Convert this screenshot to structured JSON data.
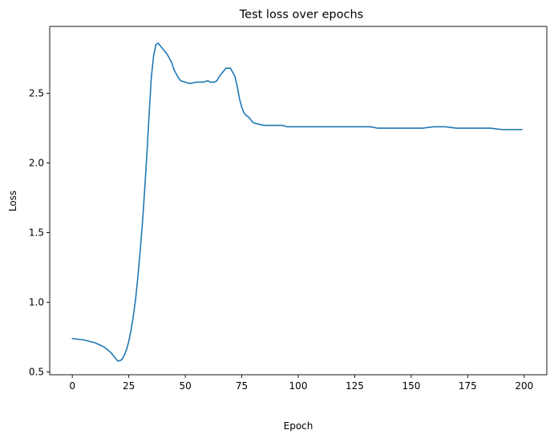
{
  "chart_data": {
    "type": "line",
    "title": "Test loss over epochs",
    "xlabel": "Epoch",
    "ylabel": "Loss",
    "xlim": [
      -10,
      210
    ],
    "ylim": [
      0.48,
      2.98
    ],
    "xticks": [
      0,
      25,
      50,
      75,
      100,
      125,
      150,
      175,
      200
    ],
    "xtick_labels": [
      "0",
      "25",
      "50",
      "75",
      "100",
      "125",
      "150",
      "175",
      "200"
    ],
    "yticks": [
      0.5,
      1.0,
      1.5,
      2.0,
      2.5
    ],
    "ytick_labels": [
      "0.5",
      "1.0",
      "1.5",
      "2.0",
      "2.5"
    ],
    "grid": false,
    "line_color": "#1f77b4",
    "series": [
      {
        "x": [
          0,
          5,
          10,
          14,
          17,
          19,
          20,
          21,
          22,
          23,
          24,
          25,
          26,
          27,
          28,
          29,
          30,
          31,
          32,
          33,
          34,
          35,
          36,
          37,
          38,
          39,
          40,
          41,
          42,
          43,
          44,
          45,
          46,
          47,
          48,
          50,
          52,
          55,
          58,
          60,
          61,
          62,
          63,
          64,
          65,
          66,
          67,
          68,
          70,
          72,
          73,
          74,
          75,
          76,
          77,
          78,
          79,
          80,
          82,
          85,
          88,
          90,
          92,
          93,
          95,
          100,
          110,
          120,
          125,
          130,
          132,
          135,
          140,
          150,
          155,
          160,
          165,
          170,
          178,
          185,
          190,
          199
        ],
        "y": [
          0.74,
          0.73,
          0.71,
          0.68,
          0.64,
          0.6,
          0.58,
          0.58,
          0.59,
          0.62,
          0.66,
          0.72,
          0.8,
          0.9,
          1.02,
          1.18,
          1.36,
          1.56,
          1.8,
          2.06,
          2.35,
          2.62,
          2.77,
          2.85,
          2.86,
          2.84,
          2.82,
          2.8,
          2.78,
          2.75,
          2.72,
          2.67,
          2.64,
          2.61,
          2.59,
          2.58,
          2.57,
          2.58,
          2.58,
          2.59,
          2.58,
          2.58,
          2.58,
          2.59,
          2.62,
          2.64,
          2.66,
          2.68,
          2.68,
          2.62,
          2.55,
          2.46,
          2.4,
          2.36,
          2.34,
          2.33,
          2.31,
          2.29,
          2.28,
          2.27,
          2.27,
          2.27,
          2.27,
          2.27,
          2.26,
          2.26,
          2.26,
          2.26,
          2.26,
          2.26,
          2.26,
          2.25,
          2.25,
          2.25,
          2.25,
          2.26,
          2.26,
          2.25,
          2.25,
          2.25,
          2.24,
          2.24
        ]
      }
    ]
  }
}
